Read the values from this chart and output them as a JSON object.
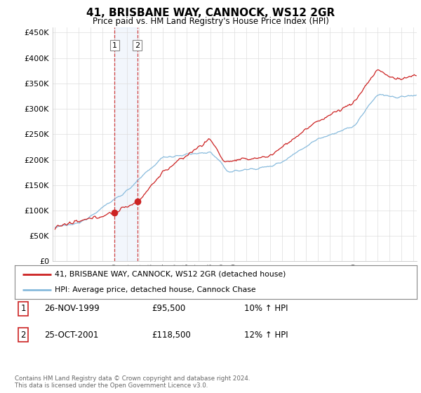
{
  "title": "41, BRISBANE WAY, CANNOCK, WS12 2GR",
  "subtitle": "Price paid vs. HM Land Registry's House Price Index (HPI)",
  "ylabel_ticks": [
    "£0",
    "£50K",
    "£100K",
    "£150K",
    "£200K",
    "£250K",
    "£300K",
    "£350K",
    "£400K",
    "£450K"
  ],
  "ylim": [
    0,
    460000
  ],
  "xlim_start": 1994.8,
  "xlim_end": 2025.3,
  "line_color_red": "#cc2222",
  "line_color_blue": "#88bbdd",
  "purchase1_x": 2000.0,
  "purchase1_y": 95500,
  "purchase2_x": 2001.9,
  "purchase2_y": 118500,
  "legend_line1": "41, BRISBANE WAY, CANNOCK, WS12 2GR (detached house)",
  "legend_line2": "HPI: Average price, detached house, Cannock Chase",
  "table_row1": [
    "1",
    "26-NOV-1999",
    "£95,500",
    "10% ↑ HPI"
  ],
  "table_row2": [
    "2",
    "25-OCT-2001",
    "£118,500",
    "12% ↑ HPI"
  ],
  "footnote": "Contains HM Land Registry data © Crown copyright and database right 2024.\nThis data is licensed under the Open Government Licence v3.0.",
  "background_color": "#ffffff",
  "grid_color": "#dddddd"
}
